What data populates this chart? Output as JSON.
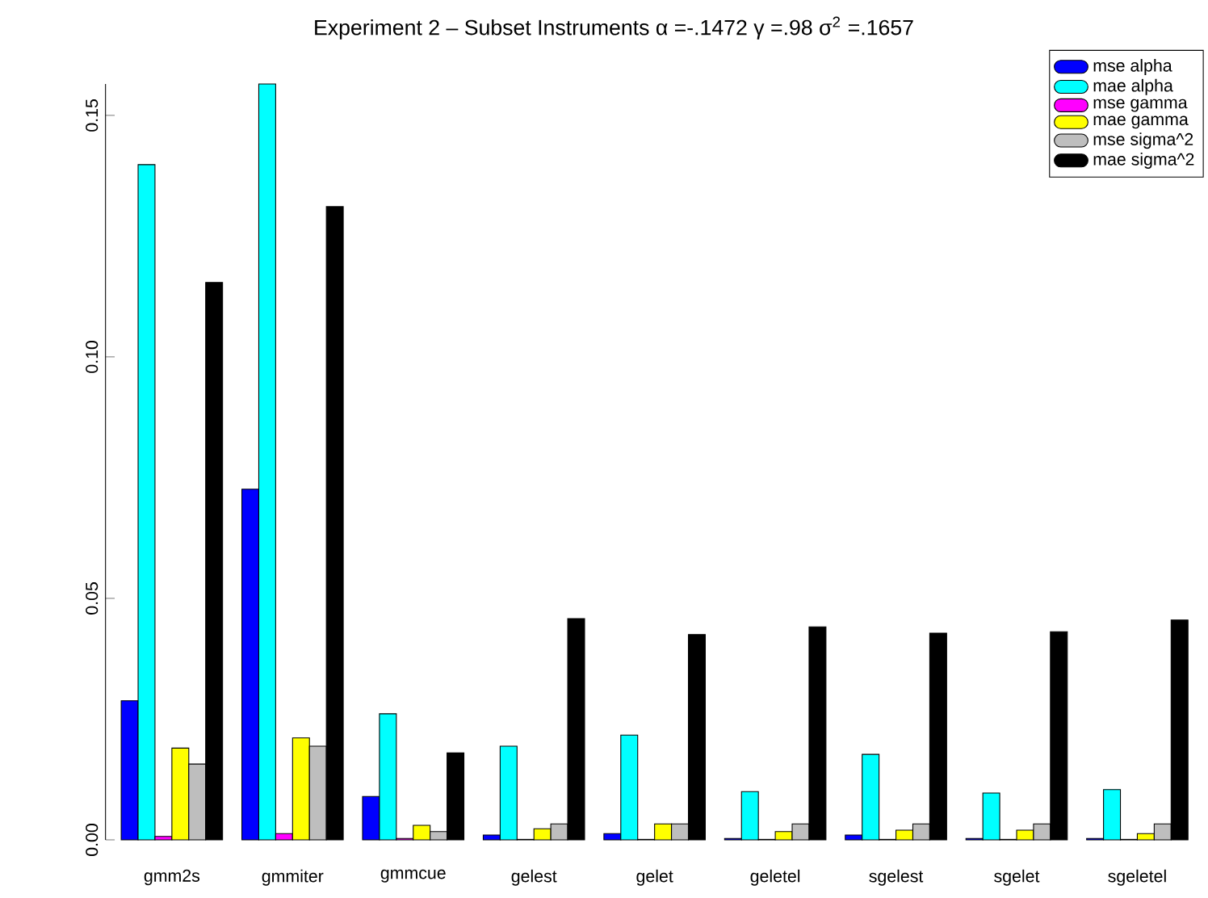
{
  "chart_data": {
    "type": "bar",
    "title": "Experiment 2 – Subset Instruments α =-.1472 γ =.98 σ$^{2}$ =.1657",
    "categories": [
      "gmm2s",
      "gmmiter",
      "gmmcue",
      "gelest",
      "gelet",
      "geletel",
      "sgelest",
      "sgelet",
      "sgeletel"
    ],
    "series": [
      {
        "name": "mse alpha",
        "color": "#0000ff",
        "values": [
          0.0288,
          0.0726,
          0.009,
          0.001,
          0.0013,
          0.0003,
          0.001,
          0.0003,
          0.0003
        ]
      },
      {
        "name": "mae alpha",
        "color": "#00ffff",
        "values": [
          0.1398,
          0.1565,
          0.0261,
          0.0194,
          0.0217,
          0.01,
          0.0177,
          0.0097,
          0.0104
        ]
      },
      {
        "name": "mse gamma",
        "color": "#ff00ff",
        "values": [
          0.0007,
          0.0013,
          0.0003,
          0.0001,
          0.0001,
          0.0001,
          0.0001,
          0.0001,
          0.0001
        ]
      },
      {
        "name": "mae gamma",
        "color": "#ffff00",
        "values": [
          0.019,
          0.0211,
          0.003,
          0.0023,
          0.0033,
          0.0017,
          0.002,
          0.002,
          0.0013
        ]
      },
      {
        "name": "mse sigma^2",
        "color": "#bebebe",
        "values": [
          0.0157,
          0.0194,
          0.0017,
          0.0033,
          0.0033,
          0.0033,
          0.0033,
          0.0033,
          0.0033
        ]
      },
      {
        "name": "mae sigma^2",
        "color": "#000000",
        "values": [
          0.1154,
          0.1311,
          0.018,
          0.0458,
          0.0425,
          0.0441,
          0.0428,
          0.0431,
          0.0455
        ]
      }
    ],
    "ylim": [
      0,
      0.1565
    ],
    "yticks": [
      {
        "value": 0,
        "label": "0.00"
      },
      {
        "value": 0.05,
        "label": "0.05"
      },
      {
        "value": 0.1,
        "label": "0.10"
      },
      {
        "value": 0.15,
        "label": "0.15"
      }
    ],
    "legend": "top right"
  }
}
